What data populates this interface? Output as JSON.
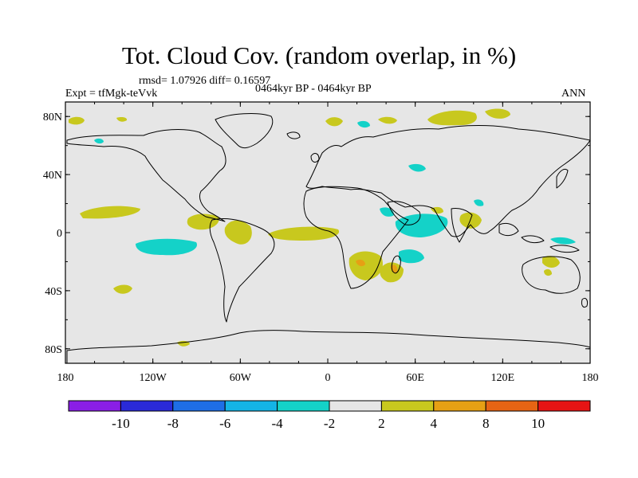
{
  "title": "Tot. Cloud Cov. (random overlap, in %)",
  "stats": "rmsd= 1.07926 diff= 0.16597",
  "experiment": "Expt = tfMgk-teVvk",
  "period": "0464kyr BP - 0464kyr BP",
  "season": "ANN",
  "axes": {
    "x_ticks": [
      "180",
      "120W",
      "60W",
      "0",
      "60E",
      "120E",
      "180"
    ],
    "y_ticks": [
      "80N",
      "40N",
      "0",
      "40S",
      "80S"
    ]
  },
  "colorbar": {
    "colors": [
      "#8a1ee6",
      "#2a2ad8",
      "#1e6ee6",
      "#14b4e6",
      "#14d2c8",
      "#e6e6e6",
      "#c8c81e",
      "#e6a014",
      "#e66414",
      "#e61414"
    ],
    "labels": [
      "-10",
      "-8",
      "-6",
      "-4",
      "-2",
      "2",
      "4",
      "8",
      "10"
    ]
  },
  "colors": {
    "land_bg": "#e6e6e6",
    "positive_2_4": "#c8c81e",
    "negative_2_4": "#14d2c8",
    "positive_4_8": "#e6a014"
  }
}
